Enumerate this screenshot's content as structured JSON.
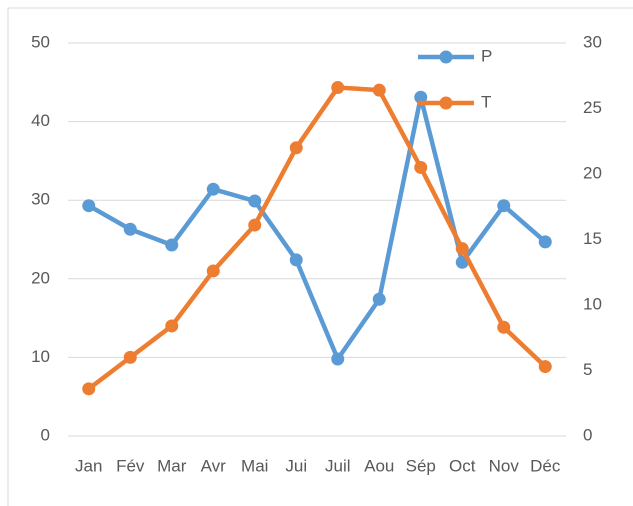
{
  "chart_data": {
    "type": "line",
    "categories": [
      "Jan",
      "Fév",
      "Mar",
      "Avr",
      "Mai",
      "Jui",
      "Juil",
      "Aou",
      "Sép",
      "Oct",
      "Nov",
      "Déc"
    ],
    "series": [
      {
        "name": "P",
        "color": "#5b9bd5",
        "values": [
          29.3,
          26.3,
          24.3,
          31.4,
          29.9,
          22.4,
          9.8,
          17.4,
          43.1,
          22.1,
          29.3,
          24.7
        ]
      },
      {
        "name": "T",
        "color": "#ed7d31",
        "axis": "y2",
        "values": [
          3.6,
          6.0,
          8.4,
          12.6,
          16.1,
          22.0,
          26.6,
          26.4,
          20.5,
          14.3,
          8.3,
          5.3
        ]
      }
    ],
    "ylim": [
      0,
      50
    ],
    "yticks": [
      0,
      10,
      20,
      30,
      40,
      50
    ],
    "y2lim": [
      0,
      30
    ],
    "y2ticks": [
      0,
      5,
      10,
      15,
      20,
      25,
      30
    ],
    "grid": true,
    "legend": "top-right"
  }
}
